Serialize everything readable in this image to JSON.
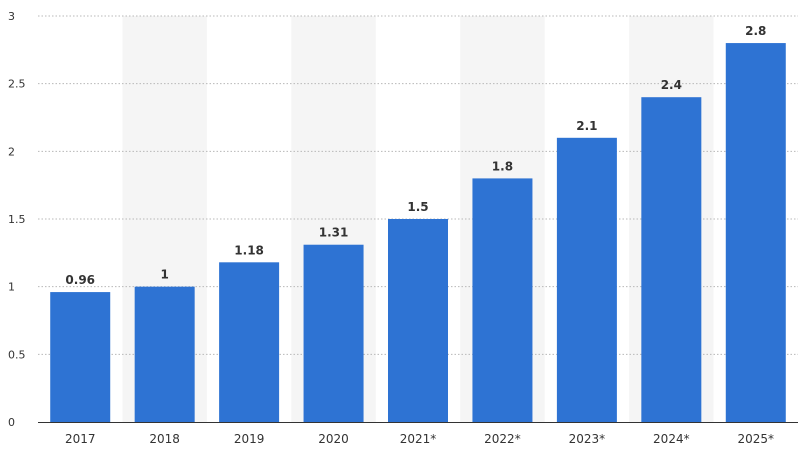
{
  "chart_data": {
    "type": "bar",
    "categories": [
      "2017",
      "2018",
      "2019",
      "2020",
      "2021*",
      "2022*",
      "2023*",
      "2024*",
      "2025*"
    ],
    "values": [
      0.96,
      1,
      1.18,
      1.31,
      1.5,
      1.8,
      2.1,
      2.4,
      2.8
    ],
    "data_labels": [
      "0.96",
      "1",
      "1.18",
      "1.31",
      "1.5",
      "1.8",
      "2.1",
      "2.4",
      "2.8"
    ],
    "y_ticks": [
      "0",
      "0.5",
      "1",
      "1.5",
      "2",
      "2.5",
      "3"
    ],
    "ylim": [
      0,
      3
    ],
    "grid": true,
    "title": "",
    "xlabel": "",
    "ylabel": "",
    "colors": {
      "bar": "#2e73d3",
      "grid": "#b8b8b8",
      "stripe": "#f5f5f5",
      "axis": "#333333",
      "text": "#333333"
    }
  }
}
